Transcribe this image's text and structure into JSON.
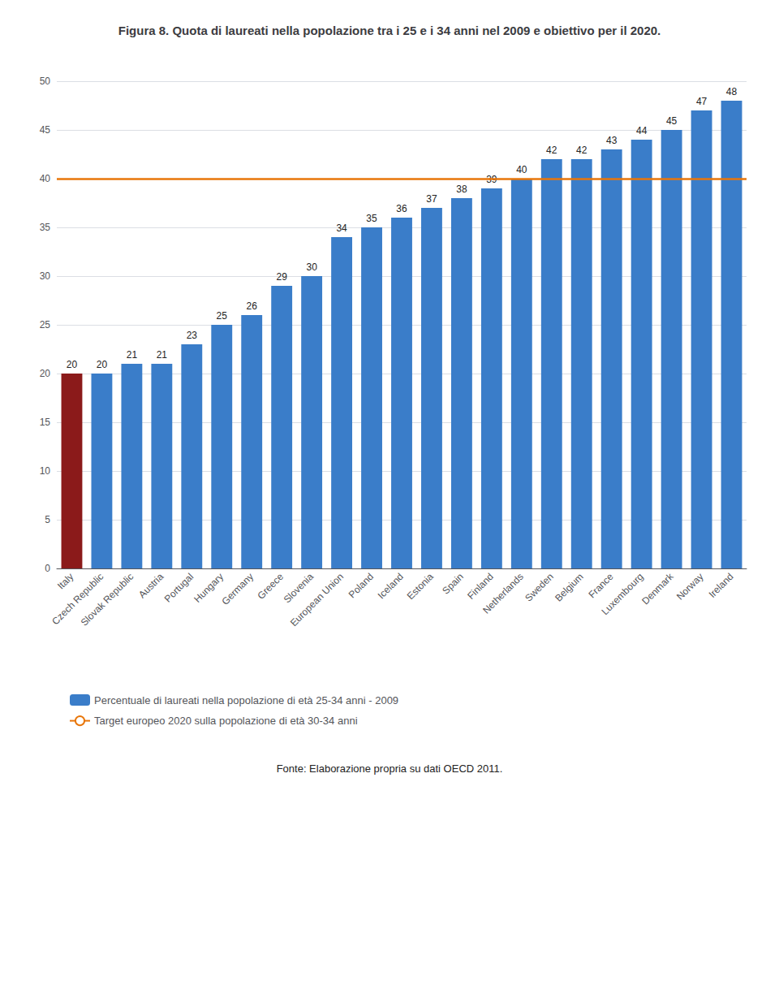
{
  "chart_data": {
    "type": "bar",
    "title": "Figura 8. Quota di laureati nella popolazione tra i 25 e i 34 anni nel 2009 e obiettivo per il 2020.",
    "annotations": [
      "Fonte: Elaborazione propria su dati OECD 2011."
    ],
    "categories": [
      "Italy",
      "Czech Republic",
      "Slovak Republic",
      "Austria",
      "Portugal",
      "Hungary",
      "Germany",
      "Greece",
      "Slovenia",
      "European Union",
      "Poland",
      "Iceland",
      "Estonia",
      "Spain",
      "Finland",
      "Netherlands",
      "Sweden",
      "Belgium",
      "France",
      "Luxembourg",
      "Denmark",
      "Norway",
      "Ireland"
    ],
    "series": [
      {
        "name": "Percentuale di laureati nella popolazione di età 25-34 anni - 2009",
        "type": "bar",
        "color": "#3A7DC9",
        "colors": [
          "#8B1A1A",
          "#3A7DC9",
          "#3A7DC9",
          "#3A7DC9",
          "#3A7DC9",
          "#3A7DC9",
          "#3A7DC9",
          "#3A7DC9",
          "#3A7DC9",
          "#3A7DC9",
          "#3A7DC9",
          "#3A7DC9",
          "#3A7DC9",
          "#3A7DC9",
          "#3A7DC9",
          "#3A7DC9",
          "#3A7DC9",
          "#3A7DC9",
          "#3A7DC9",
          "#3A7DC9",
          "#3A7DC9",
          "#3A7DC9",
          "#3A7DC9"
        ],
        "values": [
          20,
          20,
          21,
          21,
          23,
          25,
          26,
          29,
          30,
          34,
          35,
          36,
          37,
          38,
          39,
          40,
          42,
          42,
          43,
          44,
          45,
          47,
          48
        ]
      },
      {
        "name": "Target europeo 2020 sulla popolazione di età 30-34 anni",
        "type": "line",
        "color": "#E8760A",
        "y": 40
      }
    ],
    "ylim": [
      0,
      50
    ],
    "yticks": [
      0,
      5,
      10,
      15,
      20,
      25,
      30,
      35,
      40,
      45,
      50
    ],
    "grid": true,
    "data_labels": true,
    "legend": "bottom"
  }
}
